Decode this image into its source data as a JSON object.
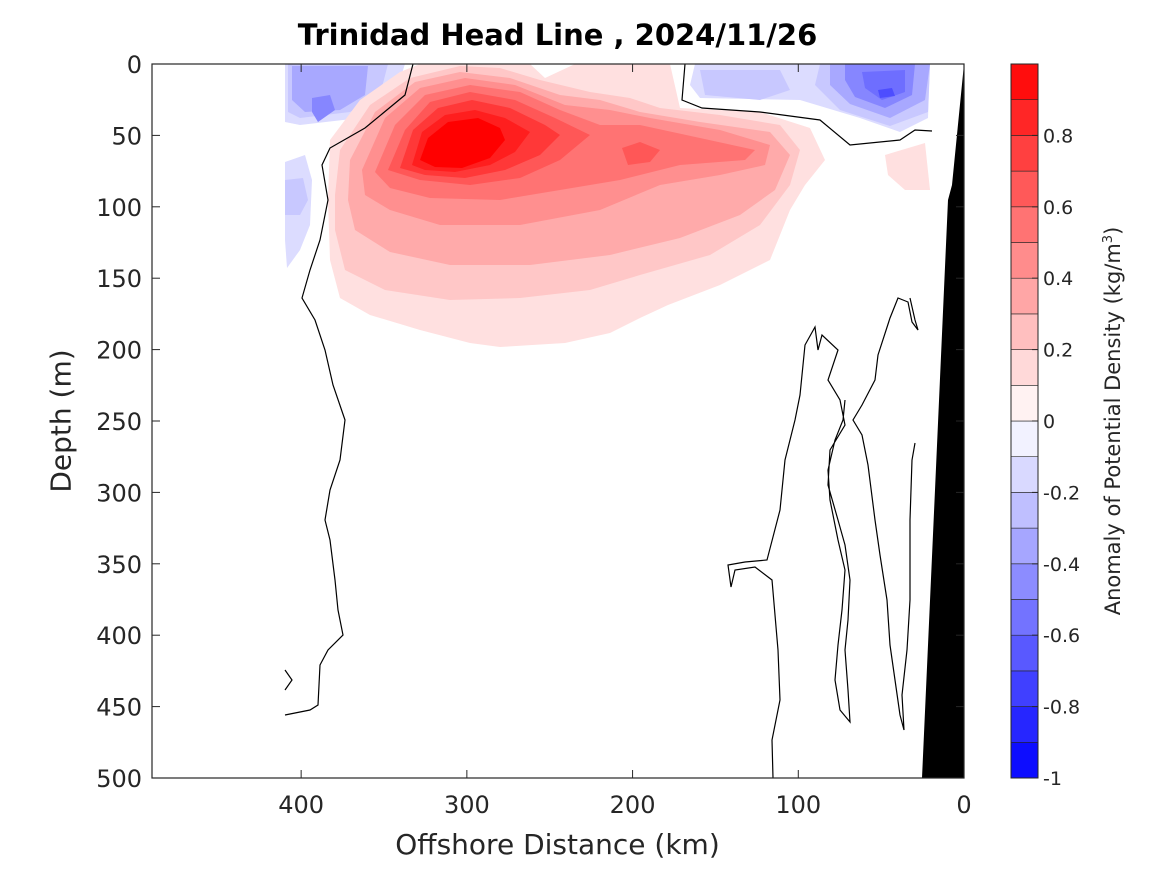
{
  "chart_data": {
    "type": "contour",
    "title": "Trinidad Head Line , 2024/11/26",
    "xlabel": "Offshore Distance (km)",
    "ylabel": "Depth (m)",
    "xlim": [
      490,
      0
    ],
    "ylim": [
      500,
      0
    ],
    "x_reversed": true,
    "y_reversed": true,
    "xticks": [
      400,
      300,
      200,
      100,
      0
    ],
    "yticks": [
      0,
      50,
      100,
      150,
      200,
      250,
      300,
      350,
      400,
      450,
      500
    ],
    "colorbar": {
      "label": "Anomaly of Potential Density (kg/m",
      "label_superscript": "3",
      "label_close": ")",
      "range": [
        -1,
        1
      ],
      "levels": [
        -1,
        -0.9,
        -0.8,
        -0.7,
        -0.6,
        -0.5,
        -0.4,
        -0.3,
        -0.2,
        -0.1,
        0,
        0.1,
        0.2,
        0.3,
        0.4,
        0.5,
        0.6,
        0.7,
        0.8,
        0.9,
        1
      ],
      "ticks": [
        "0.8",
        "0.6",
        "0.4",
        "0.2",
        "0",
        "-0.2",
        "-0.4",
        "-0.6",
        "-0.8",
        "-1"
      ],
      "tick_values": [
        0.8,
        0.6,
        0.4,
        0.2,
        0,
        -0.2,
        -0.4,
        -0.6,
        -0.8,
        -1
      ],
      "colormap": "blue-white-red"
    },
    "positive_anomaly_core": {
      "x_km": 305,
      "depth_m": 60,
      "value": 0.9
    },
    "secondary_positive_core": {
      "x_km": 195,
      "depth_m": 65,
      "value": 0.6
    },
    "negative_anomaly_cores": [
      {
        "x_km": 395,
        "depth_m": 30,
        "value": -0.4
      },
      {
        "x_km": 45,
        "depth_m": 20,
        "value": -0.7
      }
    ],
    "bathymetry": {
      "color": "#000000",
      "x_km": [
        0,
        10,
        25
      ],
      "depth_m": [
        0,
        90,
        500
      ]
    }
  }
}
